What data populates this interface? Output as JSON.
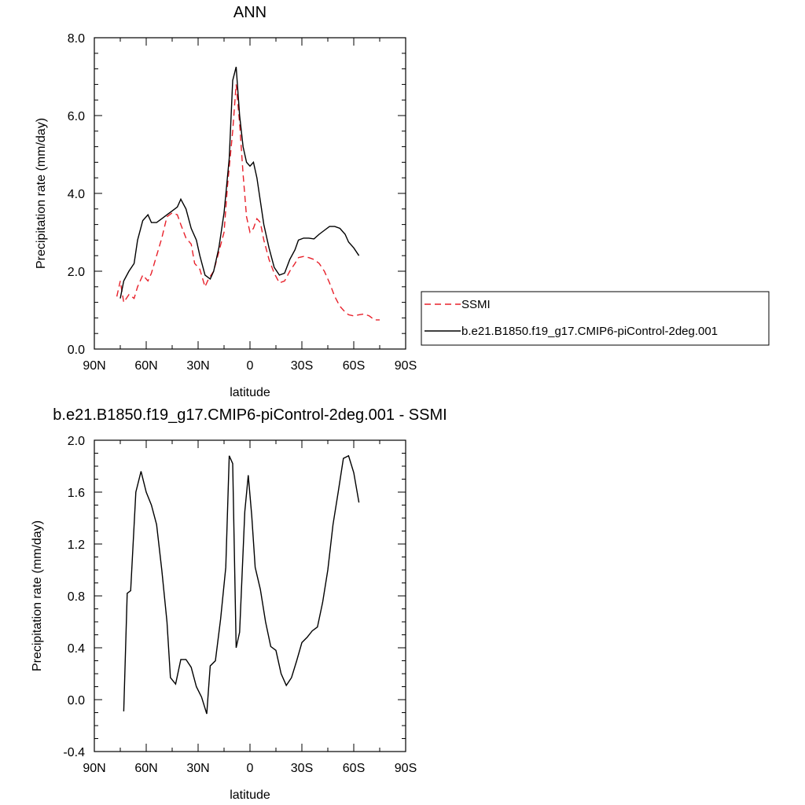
{
  "chart_data": [
    {
      "type": "line",
      "title": "ANN",
      "xlabel": "latitude",
      "ylabel": "Precipitation rate (mm/day)",
      "xlim": [
        90,
        -90
      ],
      "ylim": [
        0,
        8
      ],
      "xticks": [
        90,
        60,
        30,
        0,
        -30,
        -60,
        -90
      ],
      "xtick_labels": [
        "90N",
        "60N",
        "30N",
        "0",
        "30S",
        "60S",
        "90S"
      ],
      "yticks": [
        0,
        2,
        4,
        6,
        8
      ],
      "ytick_labels": [
        "0.0",
        "2.0",
        "4.0",
        "6.0",
        "8.0"
      ],
      "grid": false,
      "legend_position": "right",
      "series": [
        {
          "name": "SSMI",
          "color": "#e8202a",
          "dash": "dashed",
          "x": [
            77,
            75,
            73,
            70,
            67,
            65,
            62,
            59,
            57,
            54,
            51,
            48,
            45,
            42,
            40,
            37,
            34,
            32,
            29,
            26,
            24,
            21,
            18,
            15,
            13,
            10,
            8,
            6,
            4,
            2,
            0,
            -2,
            -4,
            -6,
            -8,
            -11,
            -14,
            -17,
            -20,
            -23,
            -26,
            -28,
            -31,
            -34,
            -37,
            -40,
            -43,
            -46,
            -49,
            -52,
            -55,
            -57,
            -60,
            -63,
            -66,
            -69,
            -72,
            -75
          ],
          "y": [
            1.35,
            1.75,
            1.2,
            1.4,
            1.3,
            1.6,
            1.9,
            1.75,
            1.95,
            2.4,
            2.85,
            3.4,
            3.5,
            3.45,
            3.2,
            2.85,
            2.7,
            2.2,
            2.05,
            1.6,
            1.8,
            2.0,
            2.5,
            3.0,
            4.2,
            5.6,
            6.8,
            5.8,
            4.5,
            3.4,
            3.0,
            3.1,
            3.35,
            3.25,
            2.8,
            2.3,
            1.95,
            1.7,
            1.75,
            2.0,
            2.2,
            2.35,
            2.38,
            2.35,
            2.3,
            2.2,
            2.0,
            1.7,
            1.35,
            1.1,
            0.95,
            0.88,
            0.85,
            0.88,
            0.9,
            0.85,
            0.75,
            0.75
          ]
        },
        {
          "name": "b.e21.B1850.f19_g17.CMIP6-piControl-2deg.001",
          "color": "#000000",
          "dash": "solid",
          "x": [
            75,
            73,
            70,
            67,
            65,
            62,
            59,
            57,
            54,
            51,
            48,
            45,
            42,
            40,
            37,
            34,
            31,
            29,
            26,
            23,
            21,
            18,
            15,
            12,
            10,
            8,
            6,
            4,
            2,
            0,
            -2,
            -4,
            -6,
            -8,
            -11,
            -14,
            -17,
            -20,
            -23,
            -26,
            -28,
            -31,
            -34,
            -37,
            -40,
            -43,
            -46,
            -49,
            -52,
            -55,
            -57,
            -60,
            -63
          ],
          "y": [
            1.3,
            1.75,
            2.0,
            2.2,
            2.8,
            3.3,
            3.45,
            3.25,
            3.25,
            3.35,
            3.45,
            3.55,
            3.65,
            3.85,
            3.6,
            3.1,
            2.8,
            2.4,
            1.9,
            1.8,
            2.0,
            2.6,
            3.5,
            4.9,
            6.9,
            7.25,
            6.0,
            5.2,
            4.8,
            4.7,
            4.8,
            4.4,
            3.8,
            3.2,
            2.6,
            2.1,
            1.9,
            1.95,
            2.3,
            2.55,
            2.8,
            2.85,
            2.85,
            2.83,
            2.95,
            3.05,
            3.15,
            3.15,
            3.1,
            2.95,
            2.75,
            2.6,
            2.4
          ]
        }
      ]
    },
    {
      "type": "line",
      "title": "b.e21.B1850.f19_g17.CMIP6-piControl-2deg.001 - SSMI",
      "xlabel": "latitude",
      "ylabel": "Precipitation rate (mm/day)",
      "xlim": [
        90,
        -90
      ],
      "ylim": [
        -0.4,
        2.0
      ],
      "xticks": [
        90,
        60,
        30,
        0,
        -30,
        -60,
        -90
      ],
      "xtick_labels": [
        "90N",
        "60N",
        "30N",
        "0",
        "30S",
        "60S",
        "90S"
      ],
      "yticks": [
        -0.4,
        0.0,
        0.4,
        0.8,
        1.2,
        1.6,
        2.0
      ],
      "ytick_labels": [
        "-0.4",
        "0.0",
        "0.4",
        "0.8",
        "1.2",
        "1.6",
        "2.0"
      ],
      "grid": false,
      "series": [
        {
          "color": "#000000",
          "dash": "solid",
          "x": [
            73,
            71,
            69,
            66,
            63,
            60,
            57,
            54,
            51,
            48,
            46,
            43,
            40,
            37,
            34,
            31,
            28,
            25,
            23,
            20,
            17,
            14,
            12,
            10,
            8,
            6,
            3,
            1,
            -1,
            -3,
            -6,
            -9,
            -12,
            -15,
            -18,
            -21,
            -24,
            -27,
            -30,
            -33,
            -36,
            -39,
            -42,
            -45,
            -48,
            -51,
            -54,
            -57,
            -60,
            -63
          ],
          "y": [
            -0.09,
            0.82,
            0.84,
            1.6,
            1.76,
            1.6,
            1.5,
            1.35,
            1.0,
            0.6,
            0.17,
            0.12,
            0.31,
            0.31,
            0.25,
            0.1,
            0.02,
            -0.11,
            0.26,
            0.3,
            0.62,
            1.02,
            1.88,
            1.82,
            0.4,
            0.52,
            1.45,
            1.73,
            1.42,
            1.02,
            0.85,
            0.6,
            0.41,
            0.38,
            0.2,
            0.11,
            0.17,
            0.3,
            0.44,
            0.48,
            0.53,
            0.56,
            0.75,
            1.0,
            1.35,
            1.6,
            1.86,
            1.88,
            1.75,
            1.52
          ]
        }
      ]
    }
  ]
}
